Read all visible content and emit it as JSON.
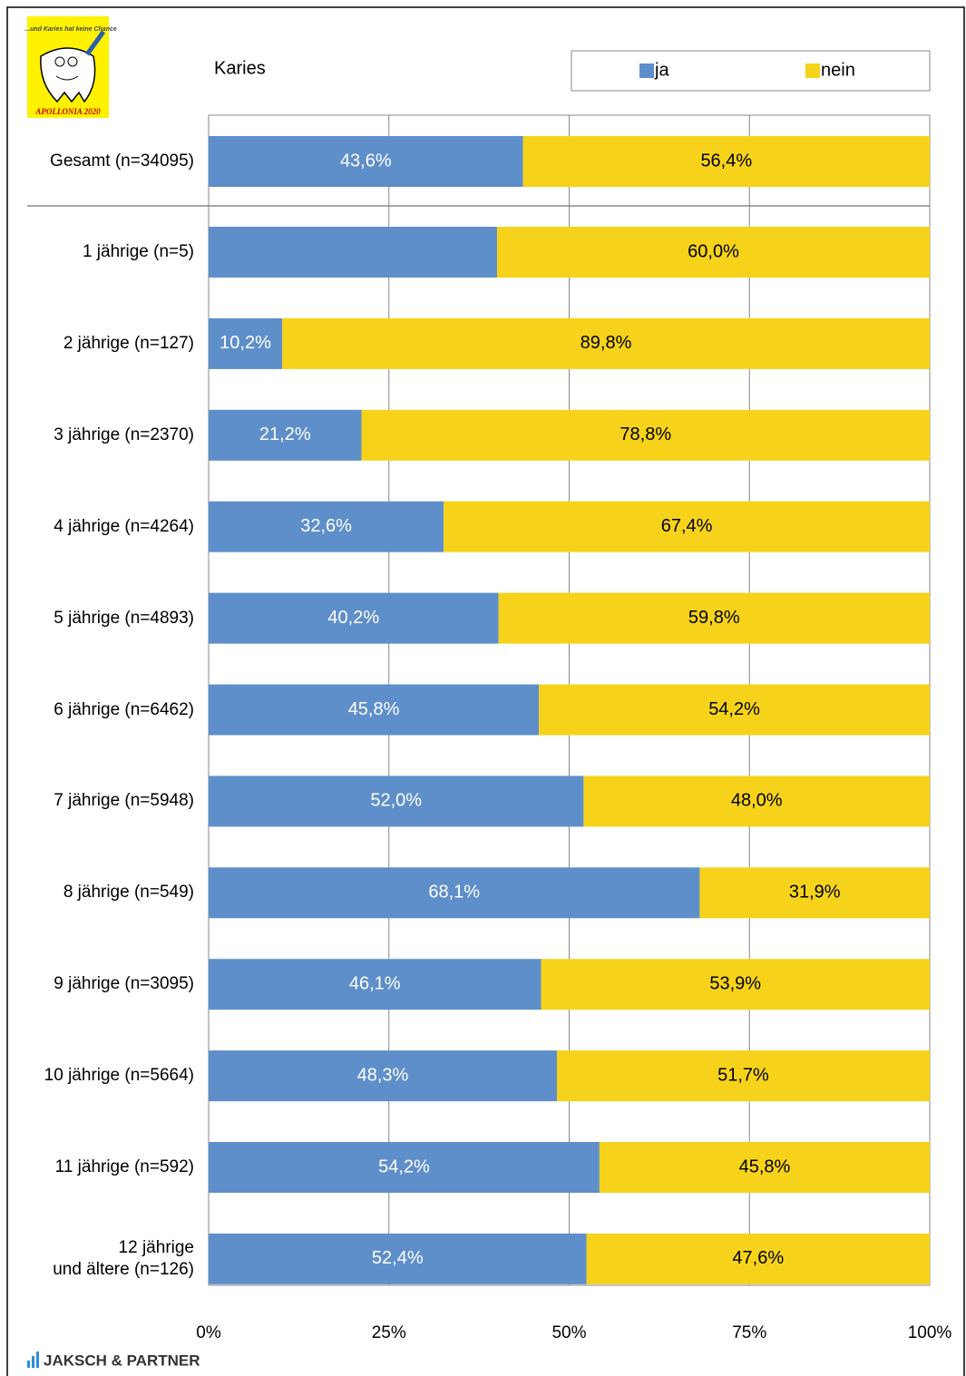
{
  "logo": {
    "slogan": "...und Karies hat keine Chance",
    "caption": "APOLLONIA 2020"
  },
  "footer": "JAKSCH & PARTNER",
  "chart_data": {
    "type": "stacked-barh",
    "title": "Karies",
    "categories": [
      "Gesamt (n=34095)",
      "1 jährige (n=5)",
      "2 jährige (n=127)",
      "3 jährige (n=2370)",
      "4 jährige (n=4264)",
      "5 jährige (n=4893)",
      "6 jährige (n=6462)",
      "7 jährige (n=5948)",
      "8 jährige (n=549)",
      "9 jährige (n=3095)",
      "10 jährige (n=5664)",
      "11 jährige (n=592)",
      "12 jährige\nund ältere (n=126)"
    ],
    "series": [
      {
        "name": "ja",
        "color": "#5f8fca",
        "values": [
          43.6,
          40.0,
          10.2,
          21.2,
          32.6,
          40.2,
          45.8,
          52.0,
          68.1,
          46.1,
          48.3,
          54.2,
          52.4
        ],
        "value_labels": [
          "43,6%",
          null,
          "10,2%",
          "21,2%",
          "32,6%",
          "40,2%",
          "45,8%",
          "52,0%",
          "68,1%",
          "46,1%",
          "48,3%",
          "54,2%",
          "52,4%"
        ]
      },
      {
        "name": "nein",
        "color": "#f6d31a",
        "values": [
          56.4,
          60.0,
          89.8,
          78.8,
          67.4,
          59.8,
          54.2,
          48.0,
          31.9,
          53.9,
          51.7,
          45.8,
          47.6
        ],
        "value_labels": [
          "56,4%",
          "60,0%",
          "89,8%",
          "78,8%",
          "67,4%",
          "59,8%",
          "54,2%",
          "48,0%",
          "31,9%",
          "53,9%",
          "51,7%",
          "45,8%",
          "47,6%"
        ]
      }
    ],
    "xlim": [
      0,
      100
    ],
    "xticks": [
      {
        "value": 0,
        "label": "0%"
      },
      {
        "value": 25,
        "label": "25%"
      },
      {
        "value": 50,
        "label": "50%"
      },
      {
        "value": 75,
        "label": "75%"
      },
      {
        "value": 100,
        "label": "100%"
      }
    ],
    "grid": true,
    "legend": "top-right"
  }
}
